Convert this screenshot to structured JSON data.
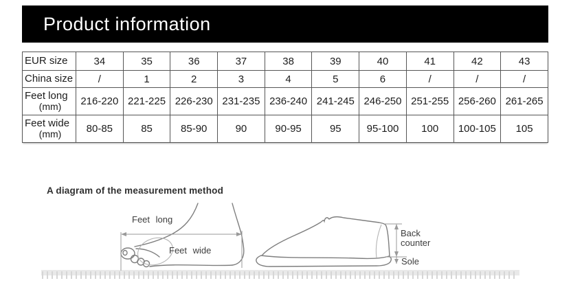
{
  "header": {
    "title": "Product information"
  },
  "table": {
    "rows": [
      {
        "label": "EUR size",
        "label2": "",
        "values": [
          "34",
          "35",
          "36",
          "37",
          "38",
          "39",
          "40",
          "41",
          "42",
          "43"
        ]
      },
      {
        "label": "China size",
        "label2": "",
        "values": [
          "/",
          "1",
          "2",
          "3",
          "4",
          "5",
          "6",
          "/",
          "/",
          "/"
        ]
      },
      {
        "label": "Feet long",
        "label2": "(mm)",
        "values": [
          "216-220",
          "221-225",
          "226-230",
          "231-235",
          "236-240",
          "241-245",
          "246-250",
          "251-255",
          "256-260",
          "261-265"
        ]
      },
      {
        "label": "Feet wide",
        "label2": "(mm)",
        "values": [
          "80-85",
          "85",
          "85-90",
          "90",
          "90-95",
          "95",
          "95-100",
          "100",
          "100-105",
          "105"
        ]
      }
    ]
  },
  "diagram": {
    "heading": "A diagram of the measurement method",
    "labels": {
      "feet_long": "Feet long",
      "feet_wide": "Feet wide",
      "back_counter_line1": "Back",
      "back_counter_line2": "counter",
      "sole": "Sole"
    }
  },
  "colors": {
    "header_bg": "#000000",
    "header_text": "#ffffff",
    "table_border": "#555555",
    "sketch_stroke": "#7e7e7e",
    "ruler_band": "#e9e9e9",
    "ruler_tick": "#d6d6d6"
  }
}
